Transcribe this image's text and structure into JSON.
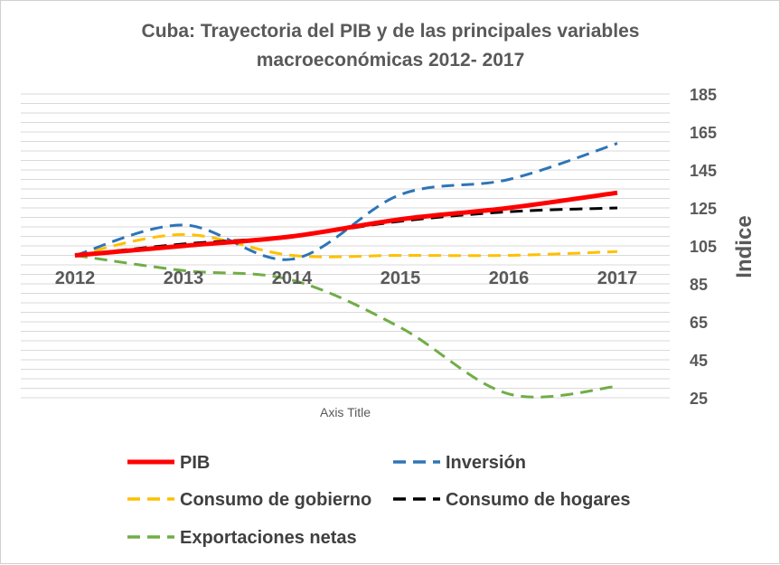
{
  "chart_data": {
    "type": "line",
    "title": [
      "Cuba: Trayectoria del PIB y de las principales variables",
      "macroeconómicas 2012- 2017"
    ],
    "xlabel": "Axis Title",
    "ylabel": "Indice",
    "x": [
      "2012",
      "2013",
      "2014",
      "2015",
      "2016",
      "2017"
    ],
    "ylim": [
      25,
      185
    ],
    "yticks": [
      185,
      165,
      145,
      125,
      105,
      85,
      65,
      45,
      25
    ],
    "y_axis_side": "right",
    "grid": true,
    "legend_position": "bottom",
    "series": [
      {
        "name": "PIB",
        "values": [
          100,
          105,
          110,
          119,
          125,
          133
        ],
        "color": "#ff0000",
        "dash": "solid"
      },
      {
        "name": "Inversión",
        "values": [
          100,
          116,
          98,
          132,
          140,
          159
        ],
        "color": "#2e75b6",
        "dash": "dashed"
      },
      {
        "name": "Consumo de gobierno",
        "values": [
          100,
          111,
          100,
          100,
          100,
          102
        ],
        "color": "#ffc000",
        "dash": "dashed"
      },
      {
        "name": "Consumo de hogares",
        "values": [
          100,
          106,
          110,
          118,
          123,
          125
        ],
        "color": "#000000",
        "dash": "dashed"
      },
      {
        "name": "Exportaciones netas",
        "values": [
          100,
          92,
          87,
          62,
          27,
          31
        ],
        "color": "#70ad47",
        "dash": "dashed"
      }
    ]
  }
}
